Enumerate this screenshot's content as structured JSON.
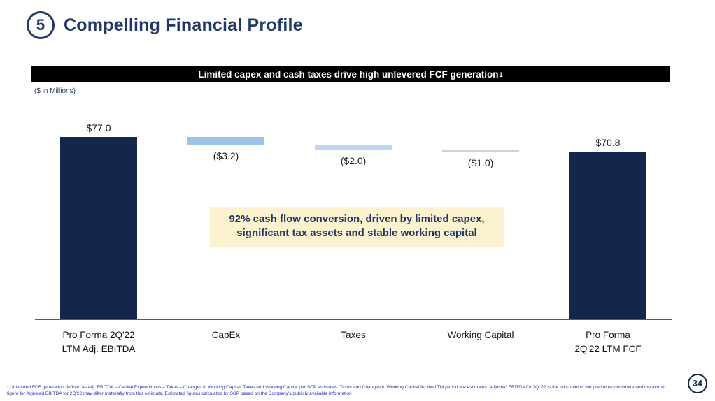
{
  "slide": {
    "number_badge": "5",
    "title": "Compelling Financial Profile",
    "banner": "Limited capex and cash taxes drive high unlevered FCF generation",
    "banner_superscript": "1",
    "units_label": "($ in Millions)",
    "callout_line1": "92% cash flow conversion, driven by limited capex,",
    "callout_line2": "significant tax assets and stable working capital",
    "footnote": "¹ Unlevered FCF generation defined as Adj. EBITDA – Capital Expenditures – Taxes – Changes in Working Capital. Taxes and Working Capital per SCP estimates. Taxes and Changes in Working Capital for the LTM period are estimates. Adjusted EBITDA for 2Q' 22 is the mid-point of the preliminary estimate and the actual figure for Adjusted EBITDA for 2Q'22 may differ materially from this estimate. Estimated figures calculated by SCP based on the Company's publicly available information",
    "page_number": "34"
  },
  "chart_data": {
    "type": "bar",
    "subtype": "waterfall",
    "title": "Limited capex and cash taxes drive high unlevered FCF generation",
    "units": "($ in Millions)",
    "categories": [
      [
        "Pro Forma 2Q'22",
        "LTM Adj. EBITDA"
      ],
      [
        "CapEx"
      ],
      [
        "Taxes"
      ],
      [
        "Working Capital"
      ],
      [
        "Pro Forma",
        "2Q'22 LTM FCF"
      ]
    ],
    "values": [
      77.0,
      -3.2,
      -2.0,
      -1.0,
      70.8
    ],
    "labels": [
      "$77.0",
      "($3.2)",
      "($2.0)",
      "($1.0)",
      "$70.8"
    ],
    "bar_starts": [
      0,
      73.8,
      71.8,
      70.8,
      0
    ],
    "bar_ends": [
      77.0,
      77.0,
      73.8,
      71.8,
      70.8
    ],
    "colors": [
      "#13264B",
      "#9DC3E6",
      "#BDD7EE",
      "#D2D2D2",
      "#13264B"
    ],
    "label_position": [
      "above",
      "below",
      "below",
      "below",
      "above"
    ],
    "ylim": [
      0,
      77
    ],
    "grid": false,
    "legend": false
  }
}
